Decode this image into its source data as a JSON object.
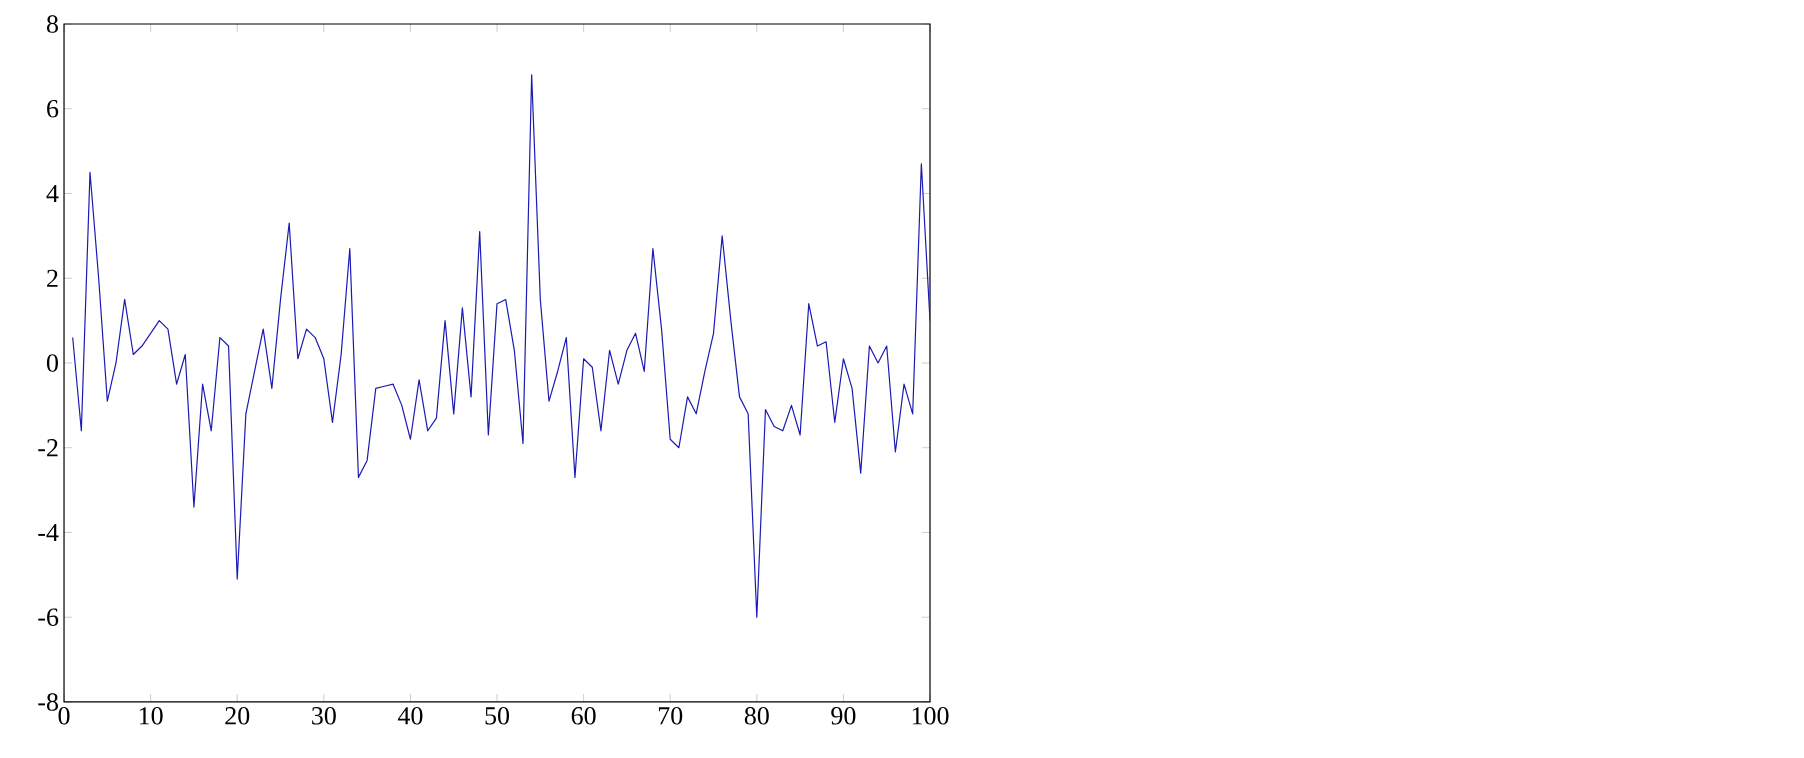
{
  "chart_data": {
    "type": "line",
    "x": [
      1,
      2,
      3,
      4,
      5,
      6,
      7,
      8,
      9,
      10,
      11,
      12,
      13,
      14,
      15,
      16,
      17,
      18,
      19,
      20,
      21,
      22,
      23,
      24,
      25,
      26,
      27,
      28,
      29,
      30,
      31,
      32,
      33,
      34,
      35,
      36,
      37,
      38,
      39,
      40,
      41,
      42,
      43,
      44,
      45,
      46,
      47,
      48,
      49,
      50,
      51,
      52,
      53,
      54,
      55,
      56,
      57,
      58,
      59,
      60,
      61,
      62,
      63,
      64,
      65,
      66,
      67,
      68,
      69,
      70,
      71,
      72,
      73,
      74,
      75,
      76,
      77,
      78,
      79,
      80,
      81,
      82,
      83,
      84,
      85,
      86,
      87,
      88,
      89,
      90,
      91,
      92,
      93,
      94,
      95,
      96,
      97,
      98,
      99,
      100
    ],
    "series": [
      {
        "color": "#1a1ab4",
        "values": [
          0.6,
          -1.6,
          4.5,
          2.0,
          -0.9,
          0.0,
          1.5,
          0.2,
          0.4,
          0.7,
          1.0,
          0.8,
          -0.5,
          0.2,
          -3.4,
          -0.5,
          -1.6,
          0.6,
          0.4,
          -5.1,
          -1.2,
          -0.2,
          0.8,
          -0.6,
          1.5,
          3.3,
          0.1,
          0.8,
          0.6,
          0.1,
          -1.4,
          0.2,
          2.7,
          -2.7,
          -2.3,
          -0.6,
          -0.55,
          -0.5,
          -1.0,
          -1.8,
          -0.4,
          -1.6,
          -1.3,
          1.0,
          -1.2,
          1.3,
          -0.8,
          3.1,
          -1.7,
          1.4,
          1.5,
          0.3,
          -1.9,
          6.8,
          1.5,
          -0.9,
          -0.2,
          0.6,
          -2.7,
          0.1,
          -0.1,
          -1.6,
          0.3,
          -0.5,
          0.3,
          0.7,
          -0.2,
          2.7,
          0.8,
          -1.8,
          -2.0,
          -0.8,
          -1.2,
          -0.2,
          0.7,
          3.0,
          1.0,
          -0.8,
          -1.2,
          -6.0,
          -1.1,
          -1.5,
          -1.6,
          -1.0,
          -1.7,
          1.4,
          0.4,
          0.5,
          -1.4,
          0.1,
          -0.6,
          -2.6,
          0.4,
          0.0,
          0.4,
          -2.1,
          -0.5,
          -1.2,
          4.7,
          1.0
        ]
      }
    ],
    "xlim": [
      0,
      100
    ],
    "ylim": [
      -8,
      8
    ],
    "xticks": [
      0,
      10,
      20,
      30,
      40,
      50,
      60,
      70,
      80,
      90,
      100
    ],
    "yticks": [
      -8,
      -6,
      -4,
      -2,
      0,
      2,
      4,
      6,
      8
    ],
    "grid": false,
    "marker": "none",
    "line_style": "solid"
  }
}
